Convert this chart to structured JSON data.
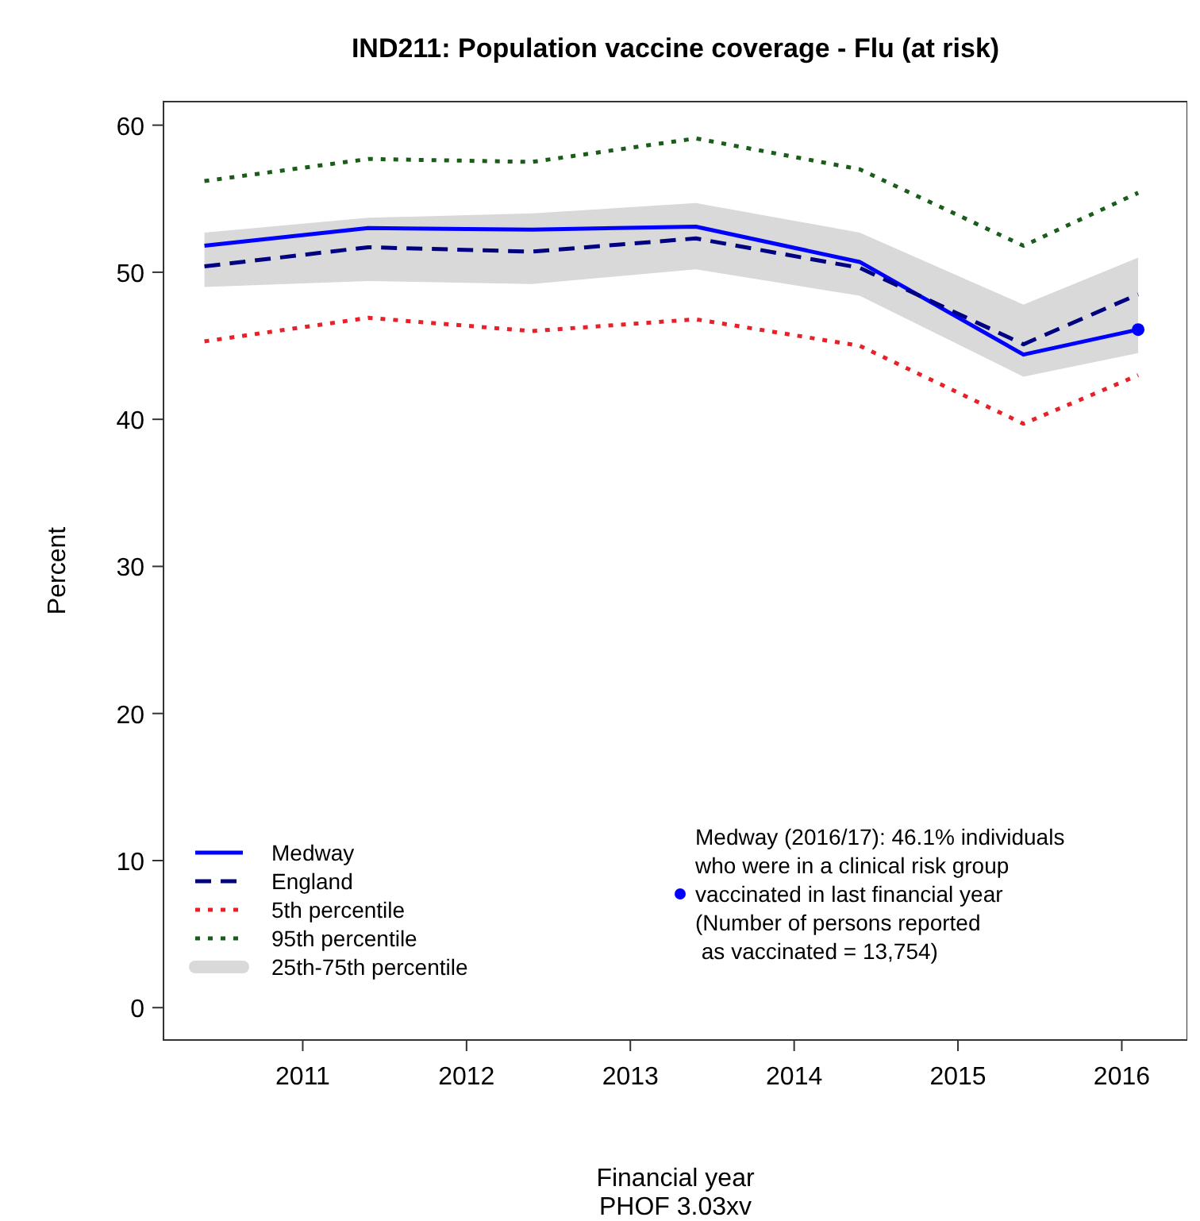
{
  "chart_data": {
    "type": "line",
    "title": "IND211: Population vaccine coverage - Flu (at risk)",
    "xlabel": "Financial year",
    "ylabel": "Percent",
    "x": [
      2010.4,
      2011.4,
      2012.4,
      2013.4,
      2014.4,
      2015.4,
      2016.1
    ],
    "xlim": [
      2010.15,
      2016.4
    ],
    "xticks": [
      2011,
      2012,
      2013,
      2014,
      2015,
      2016
    ],
    "ylim": [
      -2.2,
      61.6
    ],
    "yticks": [
      0,
      10,
      20,
      30,
      40,
      50,
      60
    ],
    "grid": false,
    "legend": "bottom left",
    "series": [
      {
        "name": "Medway",
        "color": "#0000ff",
        "line_style": "solid",
        "values": [
          51.8,
          53.0,
          52.9,
          53.1,
          50.7,
          44.4,
          46.1
        ]
      },
      {
        "name": "England",
        "color": "#000080",
        "line_style": "dashed",
        "values": [
          50.4,
          51.7,
          51.4,
          52.3,
          50.3,
          45.1,
          48.5
        ]
      },
      {
        "name": "5th percentile",
        "color": "#e8202a",
        "line_style": "dotted",
        "values": [
          45.3,
          46.9,
          46.0,
          46.8,
          45.0,
          39.7,
          43.0
        ]
      },
      {
        "name": "95th percentile",
        "color": "#1a5c1a",
        "line_style": "dotted",
        "values": [
          56.2,
          57.7,
          57.5,
          59.1,
          57.0,
          51.8,
          55.4
        ]
      },
      {
        "name": "25th-75th percentile",
        "type": "area",
        "color": "#d9d9d9",
        "values": [
          null,
          null,
          null,
          null,
          null,
          null,
          null
        ],
        "lower": [
          49.0,
          49.4,
          49.2,
          50.2,
          48.4,
          42.9,
          44.5
        ],
        "upper": [
          52.7,
          53.7,
          54.0,
          54.7,
          52.7,
          47.8,
          51.0
        ]
      },
      {
        "name": "Medway (2016/17): 46.1% individuals\nwho were in a clinical risk group\nvaccinated in last financial year\n(Number of persons reported\n as vaccinated = 13,754)",
        "type": "scatter",
        "color": "#0000ff",
        "marker": "circle",
        "x": [
          2016.1
        ],
        "values": [
          46.1
        ]
      }
    ],
    "annotations": [
      "PHOF 3.03xv"
    ]
  }
}
